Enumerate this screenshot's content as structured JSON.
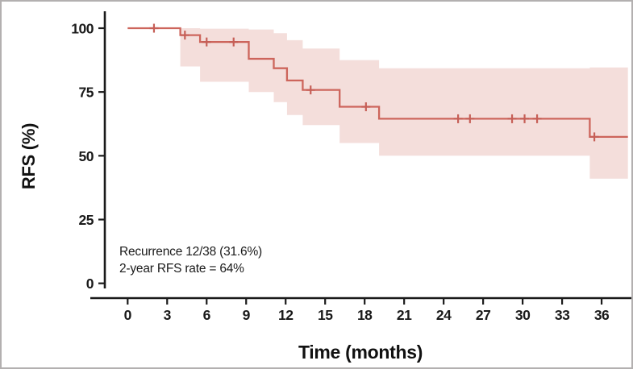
{
  "figure": {
    "background": "#ffffff",
    "frame_color": "#b3b0b0",
    "axis_color": "#1a1a1a",
    "line_color": "#cd655c",
    "band_color": "#f4dedb",
    "censor_color": "#c65f57"
  },
  "annotation": {
    "line1": "Recurrence 12/38 (31.6%)",
    "line2": "2-year RFS rate = 64%"
  },
  "chart_data": {
    "type": "line",
    "subtype": "kaplan-meier-step-curve-with-confidence-band",
    "title": "",
    "xlabel": "Time (months)",
    "ylabel": "RFS (%)",
    "xlim": [
      0,
      38
    ],
    "ylim": [
      0,
      100
    ],
    "xticks": [
      0,
      3,
      6,
      9,
      12,
      15,
      18,
      21,
      24,
      27,
      30,
      33,
      36
    ],
    "yticks": [
      100,
      75,
      50,
      25,
      0
    ],
    "grid": false,
    "legend": "none",
    "annotations": [
      "Recurrence 12/38 (31.6%)",
      "2-year RFS rate = 64%"
    ],
    "series": [
      {
        "name": "RFS",
        "start": [
          0,
          100
        ],
        "events": [
          {
            "month": 4.0,
            "survival": 97.3,
            "ci_upper": 100.0,
            "ci_lower": 85.0
          },
          {
            "month": 5.5,
            "survival": 94.6,
            "ci_upper": 99.8,
            "ci_lower": 79.0
          },
          {
            "month": 9.2,
            "survival": 88.0,
            "ci_upper": 99.5,
            "ci_lower": 75.0
          },
          {
            "month": 11.1,
            "survival": 84.3,
            "ci_upper": 98.0,
            "ci_lower": 71.0
          },
          {
            "month": 12.1,
            "survival": 79.5,
            "ci_upper": 95.3,
            "ci_lower": 66.0
          },
          {
            "month": 13.3,
            "survival": 75.8,
            "ci_upper": 92.0,
            "ci_lower": 62.0
          },
          {
            "month": 16.1,
            "survival": 69.2,
            "ci_upper": 87.5,
            "ci_lower": 55.0
          },
          {
            "month": 19.1,
            "survival": 64.5,
            "ci_upper": 84.3,
            "ci_lower": 50.0
          },
          {
            "month": 35.1,
            "survival": 57.4,
            "ci_upper": 84.6,
            "ci_lower": 41.0
          }
        ],
        "censor_marks": [
          [
            2.0,
            100
          ],
          [
            4.35,
            97.3
          ],
          [
            6.0,
            94.6
          ],
          [
            8.05,
            94.6
          ],
          [
            13.9,
            75.8
          ],
          [
            18.1,
            69.2
          ],
          [
            25.1,
            64.5
          ],
          [
            26.0,
            64.5
          ],
          [
            29.2,
            64.5
          ],
          [
            30.15,
            64.5
          ],
          [
            31.1,
            64.5
          ],
          [
            35.45,
            57.4
          ]
        ]
      }
    ]
  }
}
